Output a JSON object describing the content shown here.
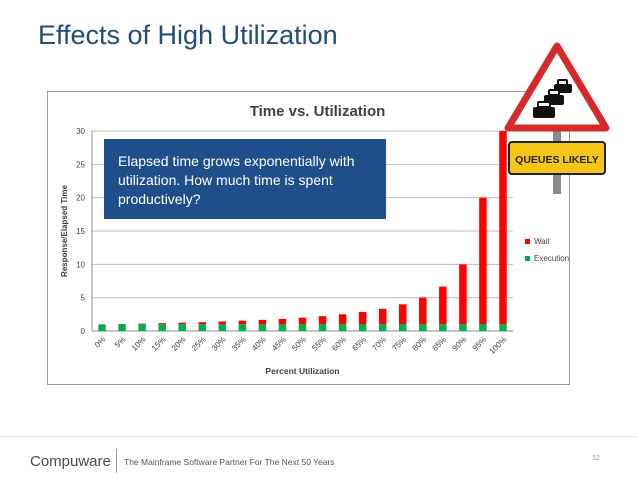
{
  "slide": {
    "title": "Effects of High Utilization",
    "callout_text": "Elapsed time grows exponentially with utilization. How much time is spent productively?",
    "sign_text": "QUEUES LIKELY",
    "footer": {
      "brand": "Compuware",
      "tagline": "The Mainframe Software Partner For The Next 50 Years",
      "page_number": "12"
    }
  },
  "colors": {
    "title": "#1f4e79",
    "callout_bg": "#1f4f8b",
    "wait": "#ff0000",
    "execution": "#00b050",
    "sign_border": "#d62a2a",
    "sign_yellow": "#f5c518"
  },
  "chart_data": {
    "type": "bar",
    "stacked": true,
    "title": "Time vs. Utilization",
    "xlabel": "Percent Utilization",
    "ylabel": "Response/Elapsed Time",
    "ylim": [
      0,
      30
    ],
    "yticks": [
      0,
      5,
      10,
      15,
      20,
      25,
      30
    ],
    "grid": true,
    "legend_position": "right",
    "categories": [
      "0%",
      "5%",
      "10%",
      "15%",
      "20%",
      "25%",
      "30%",
      "35%",
      "40%",
      "45%",
      "50%",
      "55%",
      "60%",
      "65%",
      "70%",
      "75%",
      "80%",
      "85%",
      "90%",
      "95%",
      "100%"
    ],
    "series": [
      {
        "name": "Execution",
        "color": "#00b050",
        "values": [
          1,
          1,
          1,
          1,
          1,
          1,
          1,
          1,
          1,
          1,
          1,
          1,
          1,
          1,
          1,
          1,
          1,
          1,
          1,
          1,
          1
        ]
      },
      {
        "name": "Wait",
        "color": "#ff0000",
        "values": [
          0,
          0.05,
          0.11,
          0.18,
          0.25,
          0.33,
          0.43,
          0.54,
          0.67,
          0.82,
          1,
          1.22,
          1.5,
          1.86,
          2.33,
          3,
          4,
          5.67,
          9,
          19,
          29
        ]
      }
    ]
  }
}
